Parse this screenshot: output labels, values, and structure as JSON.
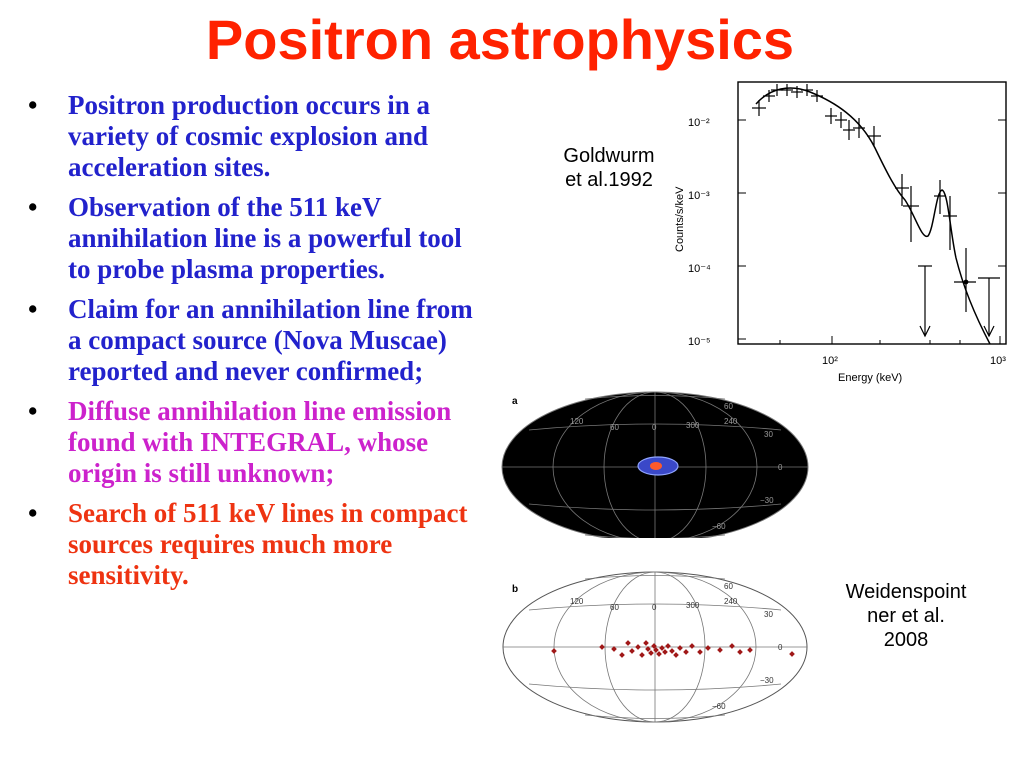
{
  "title": "Positron astrophysics",
  "colors": {
    "title": "#ff2200",
    "blue": "#2222cc",
    "magenta": "#cc22cc",
    "red": "#ee3311"
  },
  "bullets": [
    {
      "text": "Positron production occurs in a variety of cosmic explosion and acceleration sites.",
      "color": "#2222cc"
    },
    {
      "text": "Observation of the 511 keV annihilation line is a powerful tool to probe plasma properties.",
      "color": "#2222cc"
    },
    {
      "text": "Claim for an annihilation line  from a compact source (Nova Muscae)  reported and never confirmed;",
      "color": "#2222cc"
    },
    {
      "text": "Diffuse annihilation line emission found with INTEGRAL, whose origin is still unknown;",
      "color": "#cc22cc"
    },
    {
      "text": "Search of 511 keV lines in compact sources requires much more sensitivity.",
      "color": "#ee3311"
    }
  ],
  "captions": {
    "goldwurm": [
      "Goldwurm",
      "et al.1992"
    ],
    "weidenspointner": [
      "Weidenspoint",
      "ner et al.",
      "2008"
    ]
  },
  "spectrum": {
    "ylabel": "Counts/s/keV",
    "xlabel": "Energy (keV)",
    "yticks": [
      "10⁻²",
      "10⁻³",
      "10⁻⁴",
      "10⁻⁵"
    ],
    "xticks": [
      "10²",
      "10³"
    ]
  },
  "skymaps": {
    "a": {
      "label": "a",
      "lon_labels": [
        "120",
        "60",
        "0",
        "300",
        "240"
      ],
      "lat_labels": [
        "60",
        "30",
        "0",
        "−30",
        "−60"
      ]
    },
    "b": {
      "label": "b",
      "lon_labels": [
        "120",
        "60",
        "0",
        "300",
        "240"
      ],
      "lat_labels": [
        "60",
        "30",
        "0",
        "−30",
        "−60"
      ]
    }
  }
}
